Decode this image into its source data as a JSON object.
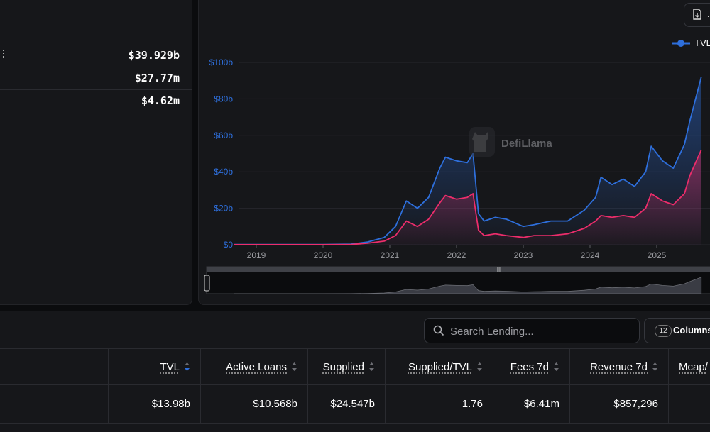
{
  "stats": [
    {
      "value": "$39.929b"
    },
    {
      "value": "$27.77m"
    },
    {
      "value": "$4.62m"
    }
  ],
  "chart_toolbar": {
    "csv_label": "."
  },
  "legend": {
    "tvl": "TVL",
    "tvl_color": "#2e6fdc",
    "borrowed_color": "#ec2d6b"
  },
  "watermark": "DefiLlama",
  "chart_data": {
    "type": "area",
    "x": [
      "2018-09",
      "2019-01",
      "2019-06",
      "2020-01",
      "2020-06",
      "2020-09",
      "2020-12",
      "2021-02",
      "2021-04",
      "2021-06",
      "2021-08",
      "2021-10",
      "2021-11",
      "2022-01",
      "2022-03",
      "2022-04",
      "2022-05",
      "2022-06",
      "2022-08",
      "2022-10",
      "2023-01",
      "2023-03",
      "2023-06",
      "2023-09",
      "2023-12",
      "2024-02",
      "2024-03",
      "2024-05",
      "2024-07",
      "2024-09",
      "2024-11",
      "2024-12",
      "2025-02",
      "2025-04",
      "2025-06",
      "2025-07",
      "2025-09"
    ],
    "series": [
      {
        "name": "TVL",
        "color": "#2e6fdc",
        "values": [
          0.1,
          0.1,
          0.1,
          0.1,
          0.3,
          1.5,
          4,
          10,
          24,
          20,
          26,
          42,
          48,
          46,
          45,
          50,
          17,
          13,
          15,
          14,
          10,
          11,
          13,
          13,
          19,
          26,
          37,
          33,
          36,
          32,
          40,
          54,
          46,
          42,
          55,
          68,
          92
        ]
      },
      {
        "color": "#ec2d6b",
        "values": [
          0.05,
          0.05,
          0.05,
          0.05,
          0.1,
          0.8,
          2,
          5,
          13,
          10,
          14,
          23,
          27,
          25,
          26,
          28,
          8,
          5,
          6,
          5,
          4,
          5,
          5,
          6,
          9,
          13,
          16,
          15,
          16,
          15,
          20,
          28,
          24,
          22,
          28,
          38,
          52
        ]
      }
    ],
    "y_ticks": [
      "$0",
      "$20b",
      "$40b",
      "$60b",
      "$80b",
      "$100b"
    ],
    "x_ticks": [
      "2019",
      "2020",
      "2021",
      "2022",
      "2023",
      "2024",
      "2025"
    ],
    "ylim": [
      0,
      100
    ],
    "grid": true,
    "legend_position": "top-right"
  },
  "search": {
    "placeholder": "Search Lending..."
  },
  "columns_button": {
    "count": "12",
    "label": "Columns"
  },
  "table": {
    "headers": [
      "TVL",
      "Active Loans",
      "Supplied",
      "Supplied/TVL",
      "Fees 7d",
      "Revenue 7d",
      "Mcap/"
    ],
    "rows": [
      [
        "$13.98b",
        "$10.568b",
        "$24.547b",
        "1.76",
        "$6.41m",
        "$857,296",
        ""
      ]
    ]
  }
}
